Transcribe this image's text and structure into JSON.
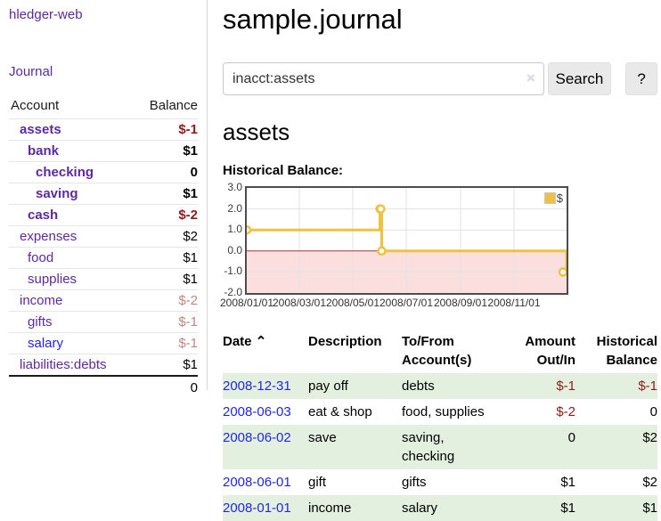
{
  "sidebar": {
    "app_title": "hledger-web",
    "journal_label": "Journal",
    "accounts_table": {
      "headers": {
        "account": "Account",
        "balance": "Balance"
      },
      "rows": [
        {
          "name": "assets",
          "balance": "$-1",
          "indent": 1,
          "bold": true,
          "balance_style": "neg-strong",
          "link": "purple"
        },
        {
          "name": "bank",
          "balance": "$1",
          "indent": 2,
          "bold": true,
          "balance_style": "plain",
          "link": "purple"
        },
        {
          "name": "checking",
          "balance": "0",
          "indent": 3,
          "bold": true,
          "balance_style": "plain",
          "link": "purple"
        },
        {
          "name": "saving",
          "balance": "$1",
          "indent": 3,
          "bold": true,
          "balance_style": "plain",
          "link": "purple"
        },
        {
          "name": "cash",
          "balance": "$-2",
          "indent": 2,
          "bold": true,
          "balance_style": "neg-strong",
          "link": "purple"
        },
        {
          "name": "expenses",
          "balance": "$2",
          "indent": 1,
          "bold": false,
          "balance_style": "plain",
          "link": "purple"
        },
        {
          "name": "food",
          "balance": "$1",
          "indent": 2,
          "bold": false,
          "balance_style": "plain",
          "link": "purple"
        },
        {
          "name": "supplies",
          "balance": "$1",
          "indent": 2,
          "bold": false,
          "balance_style": "plain",
          "link": "purple"
        },
        {
          "name": "income",
          "balance": "$-2",
          "indent": 1,
          "bold": false,
          "balance_style": "neg-muted",
          "link": "purple"
        },
        {
          "name": "gifts",
          "balance": "$-1",
          "indent": 2,
          "bold": false,
          "balance_style": "neg-muted",
          "link": "purple"
        },
        {
          "name": "salary",
          "balance": "$-1",
          "indent": 2,
          "bold": false,
          "balance_style": "neg-muted",
          "link": "blue"
        },
        {
          "name": "liabilities:debts",
          "balance": "$1",
          "indent": 1,
          "bold": false,
          "balance_style": "plain",
          "link": "purple"
        }
      ],
      "total": "0"
    }
  },
  "header": {
    "title": "sample.journal"
  },
  "search": {
    "value": "inacct:assets",
    "clear_icon": "×",
    "button_label": "Search",
    "help_label": "?"
  },
  "account_view": {
    "heading": "assets",
    "chart_label": "Historical Balance:"
  },
  "chart_data": {
    "type": "line",
    "step": true,
    "title": "Historical Balance",
    "series": [
      {
        "name": "$",
        "color": "#edc240",
        "points": [
          {
            "date": "2008-01-01",
            "value": 1
          },
          {
            "date": "2008-06-01",
            "value": 2
          },
          {
            "date": "2008-06-02",
            "value": 2
          },
          {
            "date": "2008-06-03",
            "value": 0
          },
          {
            "date": "2008-12-31",
            "value": -1
          }
        ]
      }
    ],
    "ylim": [
      -2.0,
      3.0
    ],
    "yticks": [
      "3.0",
      "2.0",
      "1.0",
      "0.0",
      "-1.0",
      "-2.0"
    ],
    "xticks": [
      "2008/01/01",
      "2008/03/01",
      "2008/05/01",
      "2008/07/01",
      "2008/09/01",
      "2008/11/01"
    ],
    "x_range_days": 365,
    "legend": {
      "label": "$",
      "position": "top-right"
    },
    "grid": true,
    "negative_region_fill": "#fbdede",
    "zero_line_color": "#a33535"
  },
  "register_table": {
    "headers": {
      "date": "Date",
      "sort_indicator": "⌃",
      "description": "Description",
      "accounts": "To/From Account(s)",
      "amount": "Amount Out/In",
      "balance": "Historical Balance"
    },
    "rows": [
      {
        "date": "2008-12-31",
        "description": "pay off",
        "accounts": "debts",
        "amount": "$-1",
        "balance": "$-1"
      },
      {
        "date": "2008-06-03",
        "description": "eat & shop",
        "accounts": "food, supplies",
        "amount": "$-2",
        "balance": "0"
      },
      {
        "date": "2008-06-02",
        "description": "save",
        "accounts": "saving, checking",
        "amount": "0",
        "balance": "$2"
      },
      {
        "date": "2008-06-01",
        "description": "gift",
        "accounts": "gifts",
        "amount": "$1",
        "balance": "$2"
      },
      {
        "date": "2008-01-01",
        "description": "income",
        "accounts": "salary",
        "amount": "$1",
        "balance": "$1"
      }
    ]
  },
  "colors": {
    "purple_link": "#5c2a9e",
    "blue_link": "#2227dd",
    "negative_strong": "#8e1a1a",
    "negative_muted": "#c28585",
    "row_highlight_green": "#e4f0df",
    "chart_line_gold": "#edc240",
    "chart_negative_pink": "#fbdede",
    "chart_zero_line": "#a33535"
  }
}
